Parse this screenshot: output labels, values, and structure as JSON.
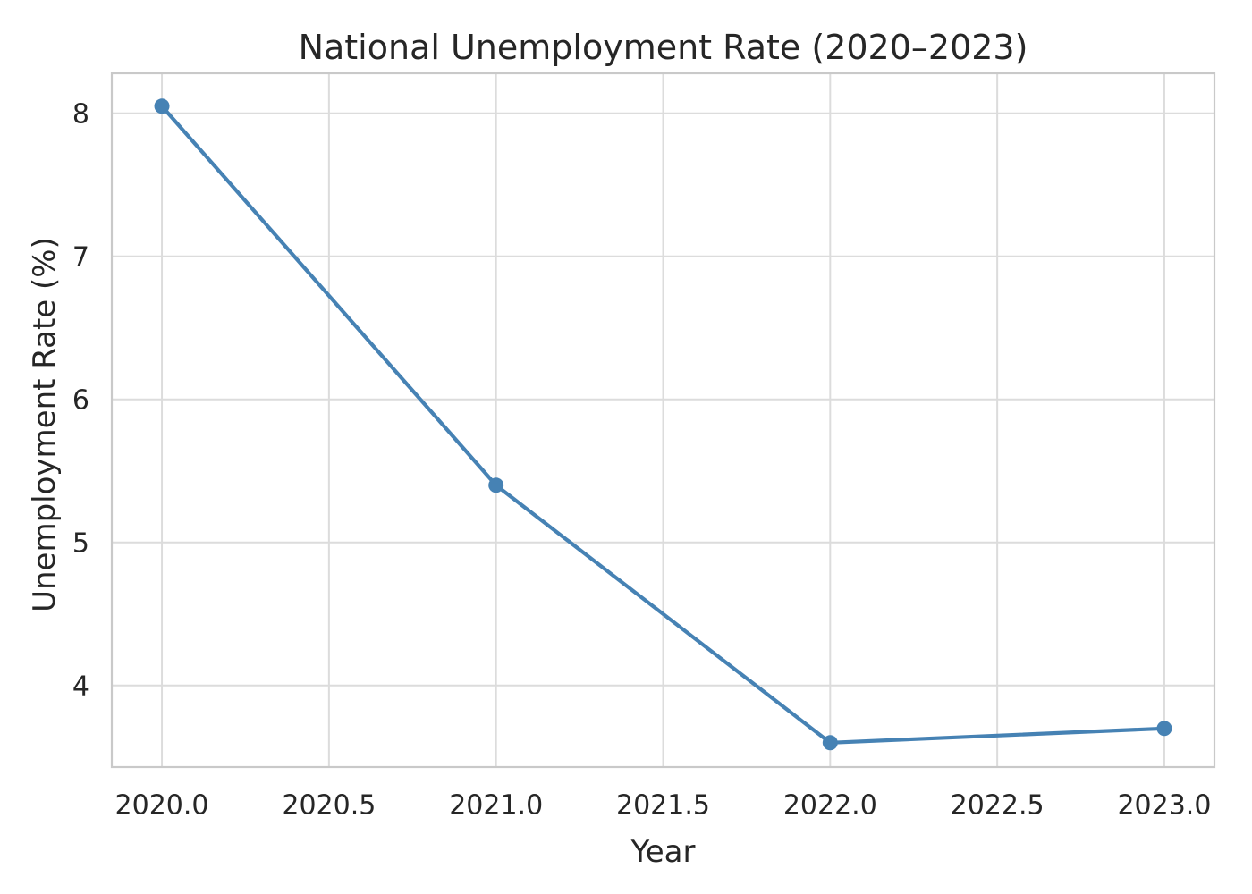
{
  "chart_data": {
    "type": "line",
    "title": "National Unemployment Rate (2020–2023)",
    "xlabel": "Year",
    "ylabel": "Unemployment Rate (%)",
    "x": [
      2020,
      2021,
      2022,
      2023
    ],
    "values": [
      8.05,
      5.4,
      3.6,
      3.7
    ],
    "x_tick_values": [
      2020.0,
      2020.5,
      2021.0,
      2021.5,
      2022.0,
      2022.5,
      2023.0
    ],
    "x_tick_labels": [
      "2020.0",
      "2020.5",
      "2021.0",
      "2021.5",
      "2022.0",
      "2022.5",
      "2023.0"
    ],
    "y_tick_values": [
      4,
      5,
      6,
      7,
      8
    ],
    "y_tick_labels": [
      "4",
      "5",
      "6",
      "7",
      "8"
    ],
    "xlim": [
      2019.85,
      2023.15
    ],
    "ylim": [
      3.43,
      8.28
    ],
    "grid": true,
    "legend": "none",
    "colors": {
      "line": "#4682B4",
      "marker": "#4682B4",
      "grid": "#dcdcdc",
      "spine": "#c9c9c9",
      "text": "#262626",
      "background": "#ffffff"
    }
  }
}
